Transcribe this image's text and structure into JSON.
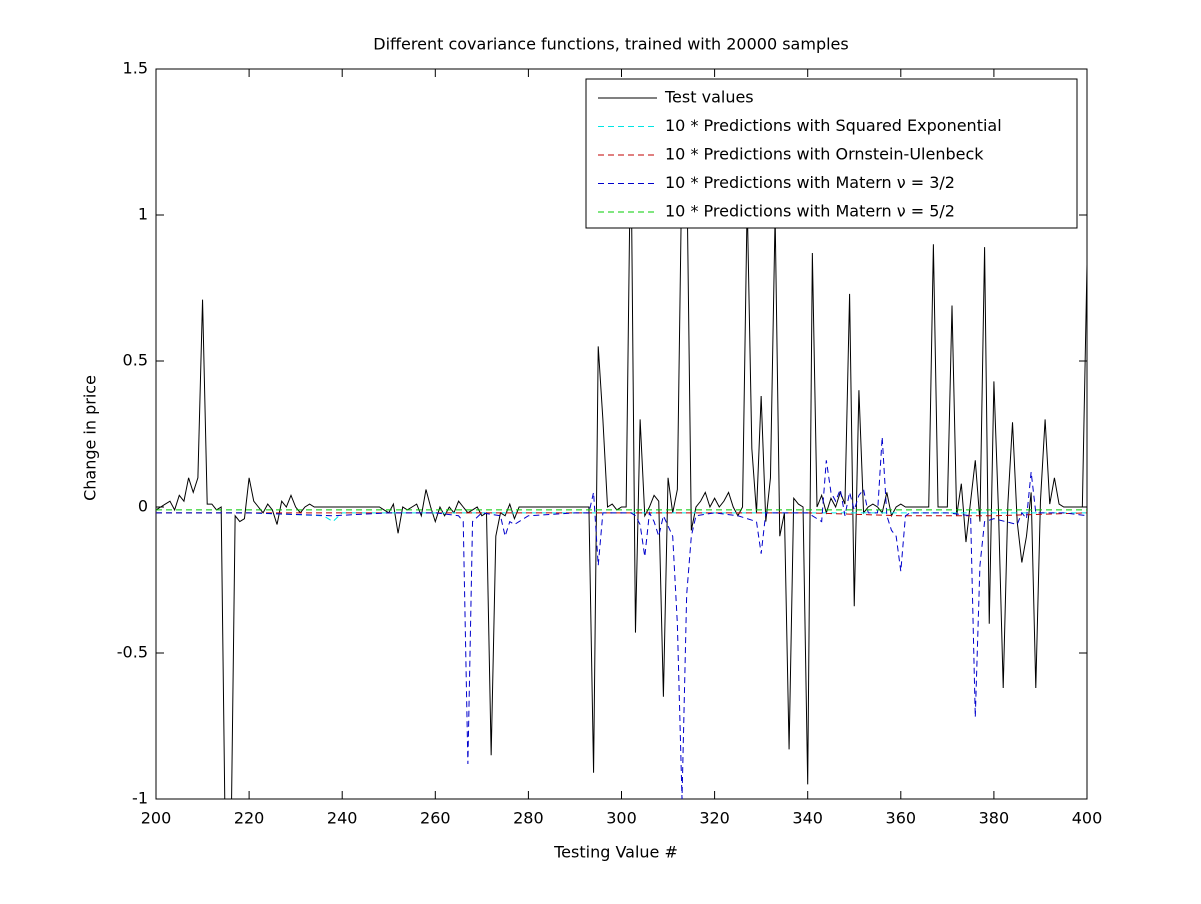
{
  "chart_data": {
    "type": "line",
    "title": "Different covariance functions, trained with 20000 samples",
    "x_label": "Testing Value #",
    "y_label": "Change in price",
    "xlim": [
      200,
      400
    ],
    "xticks": [
      200,
      220,
      240,
      260,
      280,
      300,
      320,
      340,
      360,
      380,
      400
    ],
    "ylim": [
      -1,
      1.5
    ],
    "yticks": [
      -1,
      -0.5,
      0,
      0.5,
      1,
      1.5
    ],
    "grid": false,
    "legend": "upper right",
    "series": [
      {
        "name": "Test values",
        "color": "#000000",
        "linestyle": "solid",
        "x": [
          200,
          201,
          202,
          203,
          204,
          205,
          206,
          207,
          208,
          209,
          210,
          211,
          212,
          213,
          214,
          215,
          216,
          217,
          218,
          219,
          220,
          221,
          222,
          223,
          224,
          225,
          226,
          227,
          228,
          229,
          230,
          231,
          232,
          233,
          234,
          235,
          236,
          237,
          238,
          239,
          240,
          241,
          242,
          243,
          244,
          245,
          246,
          247,
          248,
          249,
          250,
          251,
          252,
          253,
          254,
          255,
          256,
          257,
          258,
          259,
          260,
          261,
          262,
          263,
          264,
          265,
          266,
          267,
          268,
          269,
          270,
          271,
          272,
          273,
          274,
          275,
          276,
          277,
          278,
          279,
          280,
          281,
          282,
          283,
          284,
          285,
          286,
          287,
          288,
          289,
          290,
          291,
          292,
          293,
          294,
          295,
          296,
          297,
          298,
          299,
          300,
          301,
          302,
          303,
          304,
          305,
          306,
          307,
          308,
          309,
          310,
          311,
          312,
          313,
          314,
          315,
          316,
          317,
          318,
          319,
          320,
          321,
          322,
          323,
          324,
          325,
          326,
          327,
          328,
          329,
          330,
          331,
          332,
          333,
          334,
          335,
          336,
          337,
          338,
          339,
          340,
          341,
          342,
          343,
          344,
          345,
          346,
          347,
          348,
          349,
          350,
          351,
          352,
          353,
          354,
          355,
          356,
          357,
          358,
          359,
          360,
          361,
          362,
          363,
          364,
          365,
          366,
          367,
          368,
          369,
          370,
          371,
          372,
          373,
          374,
          375,
          376,
          377,
          378,
          379,
          380,
          381,
          382,
          383,
          384,
          385,
          386,
          387,
          388,
          389,
          390,
          391,
          392,
          393,
          394,
          395,
          396,
          397,
          398,
          399,
          400
        ],
        "values": [
          -0.01,
          0,
          0.01,
          0.02,
          -0.01,
          0.04,
          0.02,
          0.1,
          0.05,
          0.1,
          0.71,
          0.01,
          0.01,
          -0.01,
          0,
          -1.3,
          -1.3,
          -0.03,
          -0.05,
          -0.04,
          0.1,
          0.02,
          0,
          -0.02,
          0.01,
          -0.01,
          -0.06,
          0.02,
          0,
          0.04,
          0,
          -0.02,
          0,
          0.01,
          0,
          0,
          0,
          0,
          0,
          0,
          0,
          0,
          0,
          0,
          0,
          0,
          0,
          0,
          0,
          -0.01,
          -0.02,
          0.01,
          -0.09,
          0,
          -0.01,
          0,
          0.01,
          -0.03,
          0.06,
          0,
          -0.05,
          0,
          -0.03,
          0,
          -0.02,
          0.02,
          0,
          -0.02,
          -0.01,
          0,
          -0.03,
          -0.02,
          -0.85,
          -0.1,
          -0.02,
          -0.03,
          0.01,
          -0.04,
          0,
          0,
          0,
          0,
          0,
          0,
          0,
          0,
          0,
          0,
          0,
          0,
          0,
          0,
          0,
          0,
          -0.91,
          0.55,
          0.3,
          0,
          0.01,
          -0.01,
          0,
          0,
          1.3,
          -0.43,
          0.3,
          -0.03,
          0,
          0.04,
          0.02,
          -0.65,
          0.1,
          -0.02,
          0.06,
          1.2,
          1.2,
          -0.08,
          0,
          0.02,
          0.05,
          0,
          0.03,
          0,
          0.02,
          0.05,
          0,
          -0.03,
          0,
          1.05,
          0.2,
          -0.02,
          0.38,
          -0.05,
          0.1,
          1.0,
          -0.1,
          -0.02,
          -0.83,
          0.03,
          0.01,
          0,
          -0.95,
          0.87,
          0,
          0.04,
          -0.02,
          0.03,
          0,
          0.05,
          0.01,
          0.73,
          -0.34,
          0.4,
          -0.02,
          0,
          0.01,
          0,
          -0.02,
          0.05,
          -0.03,
          0,
          0.01,
          0,
          0,
          0,
          0,
          0,
          0,
          0.9,
          0,
          0,
          0,
          0.69,
          -0.03,
          0.08,
          -0.12,
          0.02,
          0.16,
          -0.05,
          0.89,
          -0.4,
          0.43,
          -0.02,
          -0.62,
          0.01,
          0.29,
          -0.05,
          -0.19,
          -0.1,
          0.05,
          -0.62,
          0.02,
          0.3,
          0.01,
          0.1,
          0.01,
          0,
          0,
          0,
          0,
          0,
          0.83
        ]
      },
      {
        "name": "10 * Predictions with Squared Exponential",
        "color": "#00e5e5",
        "linestyle": "dashed",
        "x": [
          200,
          220,
          236,
          238,
          240,
          260,
          280,
          300,
          320,
          340,
          360,
          380,
          400
        ],
        "values": [
          -0.02,
          -0.02,
          -0.03,
          -0.05,
          -0.02,
          -0.02,
          -0.02,
          -0.02,
          -0.02,
          -0.02,
          -0.02,
          -0.02,
          -0.02
        ]
      },
      {
        "name": "10 * Predictions with Ornstein-Ulenbeck",
        "color": "#c00000",
        "linestyle": "dashed",
        "x": [
          200,
          250,
          300,
          340,
          360,
          380,
          400
        ],
        "values": [
          -0.02,
          -0.02,
          -0.02,
          -0.02,
          -0.03,
          -0.03,
          -0.02
        ]
      },
      {
        "name": "10 * Predictions with Matern  ν = 3/2",
        "color": "#0000cc",
        "linestyle": "dashed",
        "x": [
          200,
          210,
          220,
          238,
          250,
          260,
          265,
          266,
          267,
          268,
          270,
          274,
          275,
          276,
          277,
          280,
          290,
          293,
          294,
          295,
          296,
          300,
          302,
          303,
          304,
          305,
          306,
          307,
          308,
          309,
          311,
          312,
          313,
          314,
          315,
          316,
          320,
          325,
          329,
          330,
          331,
          335,
          340,
          343,
          344,
          345,
          346,
          347,
          348,
          349,
          350,
          351,
          352,
          353,
          355,
          356,
          357,
          358,
          359,
          360,
          361,
          362,
          370,
          375,
          376,
          377,
          378,
          380,
          385,
          386,
          387,
          388,
          389,
          390,
          395,
          400
        ],
        "values": [
          -0.02,
          -0.02,
          -0.02,
          -0.03,
          -0.02,
          -0.02,
          -0.03,
          -0.05,
          -0.88,
          -0.05,
          -0.02,
          -0.03,
          -0.1,
          -0.05,
          -0.06,
          -0.03,
          -0.02,
          -0.02,
          0.05,
          -0.2,
          -0.02,
          -0.02,
          -0.02,
          -0.03,
          -0.06,
          -0.17,
          -0.02,
          -0.05,
          -0.1,
          -0.03,
          -0.1,
          -0.4,
          -1.0,
          -0.3,
          -0.1,
          -0.03,
          -0.02,
          -0.03,
          -0.05,
          -0.16,
          -0.02,
          -0.02,
          -0.02,
          -0.05,
          0.16,
          0.05,
          0.02,
          0.06,
          -0.03,
          0.05,
          -0.01,
          0.04,
          0.06,
          -0.02,
          -0.02,
          0.24,
          -0.03,
          -0.08,
          -0.1,
          -0.22,
          -0.03,
          -0.02,
          -0.02,
          -0.03,
          -0.72,
          -0.2,
          -0.05,
          -0.04,
          -0.06,
          -0.02,
          -0.04,
          0.12,
          -0.02,
          -0.02,
          -0.02,
          -0.03
        ]
      },
      {
        "name": "10 * Predictions with Matern  ν = 5/2",
        "color": "#00cc00",
        "linestyle": "dashed",
        "x": [
          200,
          300,
          400
        ],
        "values": [
          -0.01,
          -0.01,
          -0.01
        ]
      }
    ]
  }
}
